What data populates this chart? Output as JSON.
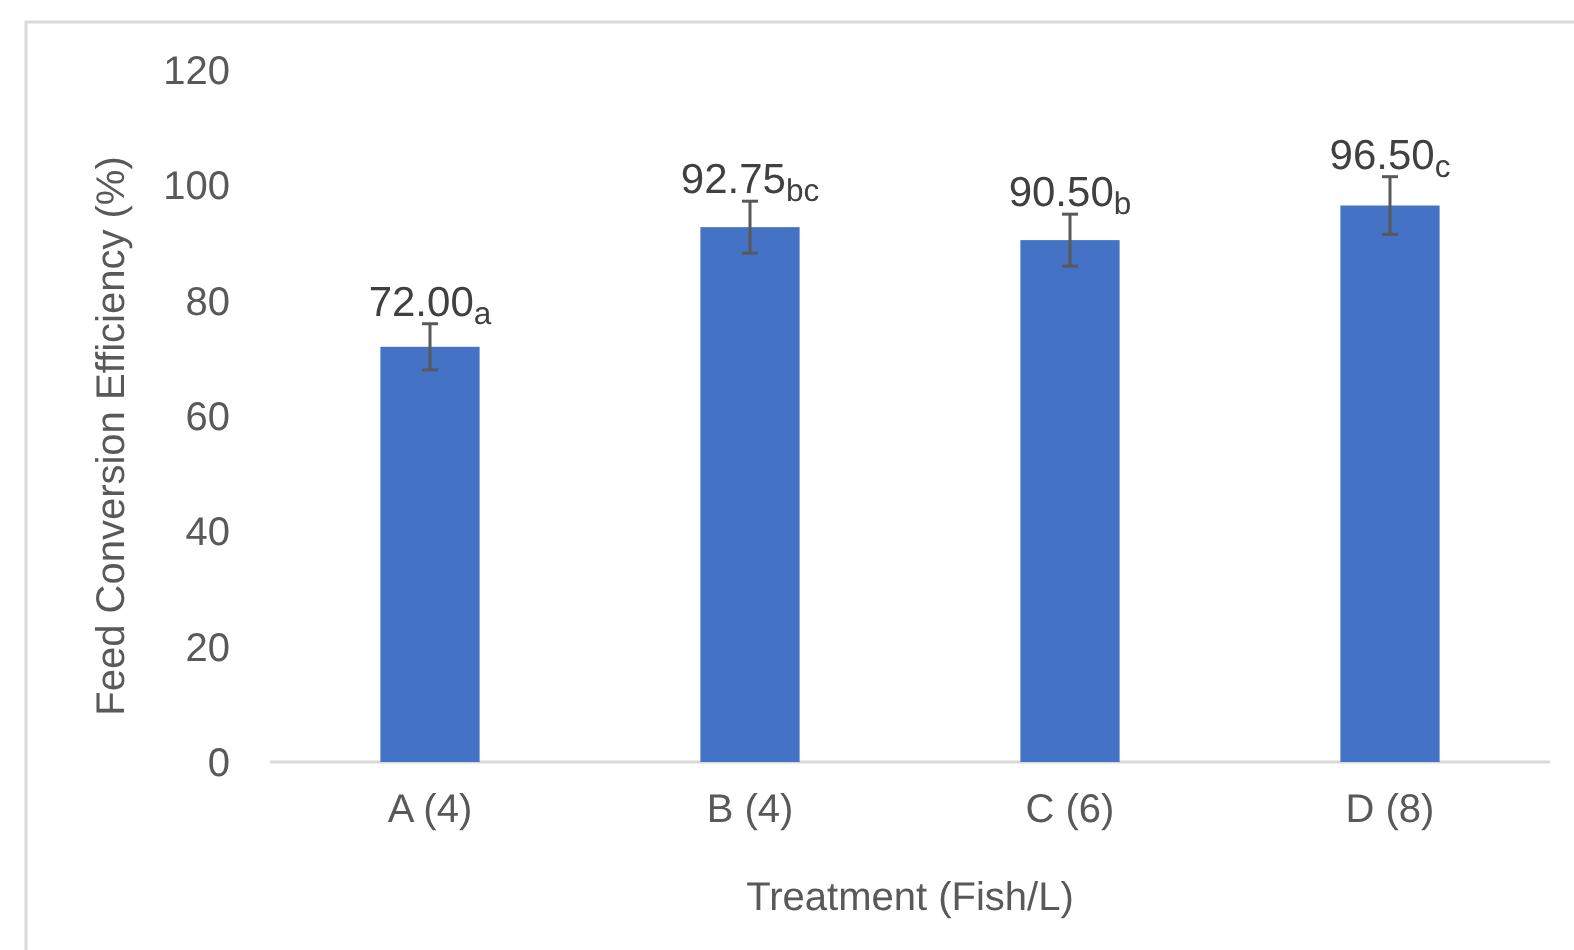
{
  "chart_data": {
    "type": "bar",
    "xlabel": "Treatment (Fish/L)",
    "ylabel": "Feed Conversion Efficiency (%)",
    "categories": [
      "A (4)",
      "B (4)",
      "C (6)",
      "D (8)"
    ],
    "values": [
      72.0,
      92.75,
      90.5,
      96.5
    ],
    "errors": [
      4,
      4.5,
      4.5,
      5
    ],
    "value_labels": [
      "72.00$_{a}$",
      "92.75$_{bc}$",
      "90.50$_{b}$",
      "96.50$_{c}$"
    ],
    "color": "#4472c4",
    "ylim": [
      0,
      120
    ],
    "yticks": [
      0,
      20,
      40,
      60,
      80,
      100,
      120
    ],
    "grid": false
  }
}
